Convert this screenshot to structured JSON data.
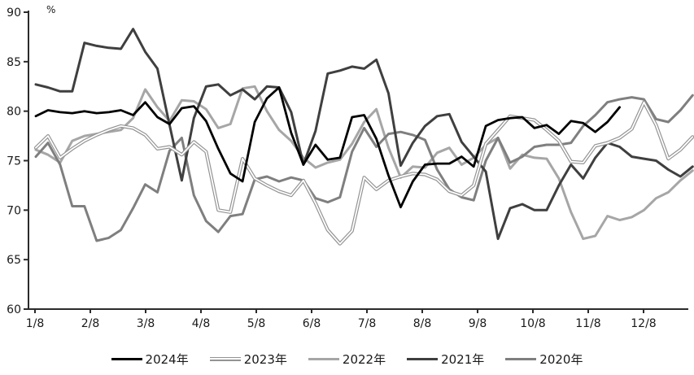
{
  "unit_label": "%",
  "axes": {
    "y_ticks": [
      60,
      65,
      70,
      75,
      80,
      85,
      90
    ],
    "ylim": [
      60,
      90
    ],
    "x_tick_labels": [
      "1/8",
      "2/8",
      "3/8",
      "4/8",
      "5/8",
      "6/8",
      "7/8",
      "8/8",
      "9/8",
      "10/8",
      "11/8",
      "12/8"
    ],
    "axis_color": "#2b2b2b",
    "label_color": "#1a1a1a"
  },
  "chart_data": {
    "type": "line",
    "title": "",
    "xlabel": "",
    "ylabel": "%",
    "ylim": [
      60,
      90
    ],
    "x_unit": "weekly points, months labeled 1/8 through 12/8",
    "grid": false,
    "legend_position": "bottom-center",
    "series": [
      {
        "name": "2024年",
        "color": "#000000",
        "style": "solid",
        "width": 2.8,
        "values": [
          79.5,
          80.1,
          79.9,
          79.8,
          80.0,
          79.8,
          79.9,
          80.1,
          79.6,
          80.9,
          79.4,
          78.7,
          80.3,
          80.5,
          79.0,
          76.2,
          73.7,
          72.9,
          78.9,
          81.3,
          82.4,
          77.8,
          74.6,
          76.6,
          75.1,
          75.3,
          79.4,
          79.6,
          77.2,
          73.5,
          70.3,
          72.9,
          74.6,
          74.7,
          74.7,
          75.4,
          74.4,
          78.5,
          79.1,
          79.3,
          79.4,
          78.3,
          78.6,
          77.7,
          79.0,
          78.8,
          77.9,
          78.9,
          80.4
        ]
      },
      {
        "name": "2023年",
        "color": "#949494",
        "style": "double",
        "width": 4.2,
        "values": [
          76.3,
          77.5,
          75.3,
          76.2,
          77.0,
          77.6,
          78.1,
          78.5,
          78.3,
          77.6,
          76.2,
          76.4,
          75.6,
          76.9,
          75.9,
          70.0,
          69.8,
          75.2,
          73.2,
          72.5,
          71.9,
          71.5,
          73.0,
          70.7,
          68.0,
          66.6,
          67.9,
          73.3,
          72.1,
          73.0,
          73.4,
          73.7,
          73.6,
          73.1,
          71.9,
          71.5,
          72.5,
          76.7,
          78.1,
          79.5,
          79.3,
          79.1,
          78.1,
          77.0,
          74.9,
          74.8,
          76.5,
          76.8,
          77.3,
          78.2,
          80.9,
          78.6,
          75.2,
          76.1,
          77.4
        ]
      },
      {
        "name": "2022年",
        "color": "#a6a6a6",
        "style": "solid",
        "width": 3.0,
        "values": [
          76.1,
          75.6,
          74.8,
          77.0,
          77.5,
          77.7,
          77.9,
          78.1,
          79.3,
          82.2,
          80.4,
          79.0,
          81.1,
          81.0,
          80.2,
          78.3,
          78.7,
          82.3,
          82.5,
          80.0,
          78.1,
          77.0,
          75.3,
          74.3,
          74.8,
          75.1,
          76.7,
          78.9,
          80.2,
          76.3,
          73.3,
          74.4,
          74.3,
          75.8,
          76.3,
          74.6,
          75.3,
          76.6,
          77.3,
          74.2,
          75.6,
          75.3,
          75.2,
          73.2,
          69.8,
          67.1,
          67.4,
          69.4,
          69.0,
          69.3,
          70.0,
          71.2,
          71.8,
          73.0,
          74.0
        ]
      },
      {
        "name": "2021年",
        "color": "#3f3f3f",
        "style": "solid",
        "width": 3.0,
        "values": [
          82.7,
          82.4,
          82.0,
          82.0,
          86.9,
          86.6,
          86.4,
          86.3,
          88.3,
          86.0,
          84.3,
          78.6,
          73.0,
          79.3,
          82.5,
          82.7,
          81.6,
          82.2,
          81.2,
          82.5,
          82.4,
          79.9,
          74.6,
          78.0,
          83.8,
          84.1,
          84.5,
          84.3,
          85.2,
          81.8,
          74.5,
          76.8,
          78.5,
          79.5,
          79.7,
          76.9,
          75.4,
          73.9,
          67.1,
          70.2,
          70.6,
          70.0,
          70.0,
          72.5,
          74.6,
          73.2,
          75.3,
          76.8,
          76.4,
          75.4,
          75.2,
          75.0,
          74.1,
          73.4,
          74.4
        ]
      },
      {
        "name": "2020年",
        "color": "#7f7f7f",
        "style": "solid",
        "width": 3.0,
        "values": [
          75.4,
          76.8,
          74.6,
          70.4,
          70.4,
          66.9,
          67.2,
          68.0,
          70.2,
          72.6,
          71.8,
          76.0,
          77.3,
          71.5,
          68.9,
          67.8,
          69.4,
          69.6,
          73.1,
          73.4,
          72.9,
          73.3,
          73.0,
          71.2,
          70.8,
          71.3,
          75.9,
          78.3,
          76.4,
          77.7,
          77.9,
          77.6,
          77.1,
          74.1,
          72.1,
          71.3,
          71.0,
          75.0,
          77.3,
          74.8,
          75.4,
          76.4,
          76.6,
          76.6,
          76.8,
          78.5,
          79.6,
          80.9,
          81.2,
          81.4,
          81.2,
          79.2,
          78.9,
          80.1,
          81.6
        ]
      }
    ]
  },
  "legend": {
    "items": [
      "2024年",
      "2023年",
      "2022年",
      "2021年",
      "2020年"
    ]
  }
}
